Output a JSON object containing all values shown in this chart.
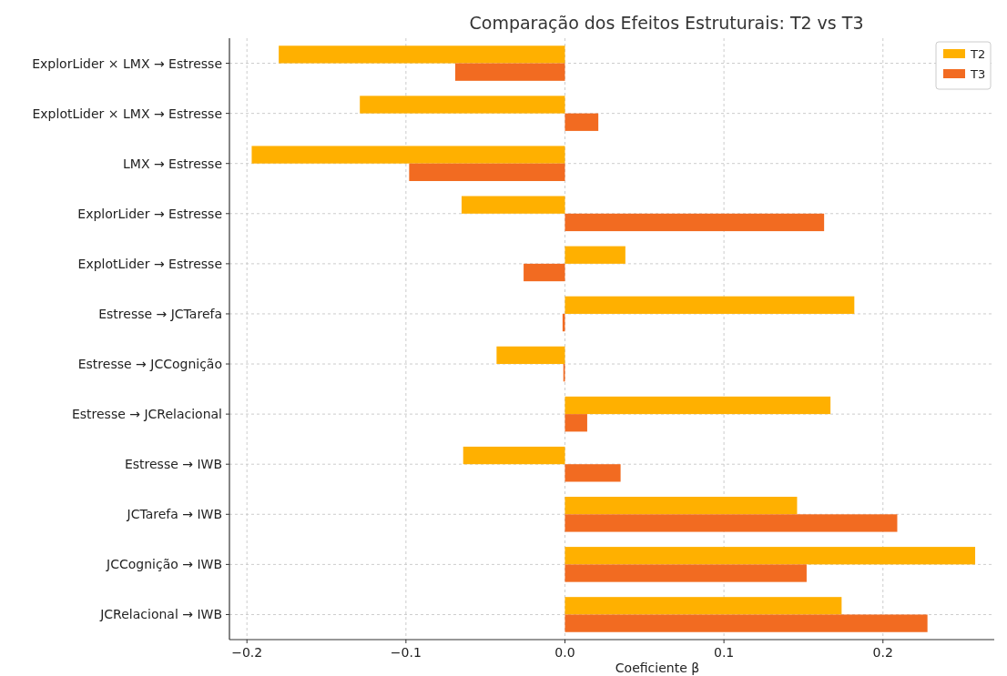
{
  "chart_data": {
    "type": "bar",
    "orientation": "horizontal",
    "title": "Comparação dos Efeitos Estruturais: T2 vs T3",
    "xlabel": "Coeficiente β",
    "categories": [
      "ExplorLider × LMX → Estresse",
      "ExplotLider × LMX → Estresse",
      "LMX → Estresse",
      "ExplorLider → Estresse",
      "ExplotLider → Estresse",
      "Estresse → JCTarefa",
      "Estresse → JCCognição",
      "Estresse → JCRelacional",
      "Estresse → IWB",
      "JCTarefa → IWB",
      "JCCognição → IWB",
      "JCRelacional → IWB"
    ],
    "series": [
      {
        "name": "T2",
        "color": "#ffb000",
        "values": [
          -0.18,
          -0.129,
          -0.197,
          -0.065,
          0.038,
          0.182,
          -0.043,
          0.167,
          -0.064,
          0.146,
          0.258,
          0.174
        ]
      },
      {
        "name": "T3",
        "color": "#f26b21",
        "values": [
          -0.069,
          0.021,
          -0.098,
          0.163,
          -0.026,
          -0.0015,
          -0.001,
          0.014,
          0.035,
          0.209,
          0.152,
          0.228
        ]
      }
    ],
    "xlim": [
      -0.211,
      0.27
    ],
    "xticks": [
      {
        "value": -0.2,
        "label": "−0.2"
      },
      {
        "value": -0.1,
        "label": "−0.1"
      },
      {
        "value": 0,
        "label": "0.0"
      },
      0.1,
      0.2
    ],
    "grid": true,
    "legend": "top right"
  }
}
